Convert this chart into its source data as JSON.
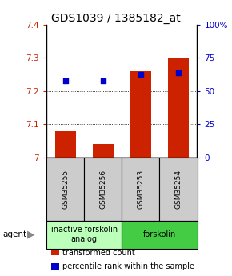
{
  "title": "GDS1039 / 1385182_at",
  "samples": [
    "GSM35255",
    "GSM35256",
    "GSM35253",
    "GSM35254"
  ],
  "red_values": [
    7.08,
    7.04,
    7.26,
    7.3
  ],
  "blue_values": [
    7.23,
    7.23,
    7.25,
    7.255
  ],
  "y_min": 7.0,
  "y_max": 7.4,
  "y_ticks": [
    7.0,
    7.1,
    7.2,
    7.3,
    7.4
  ],
  "y_right_ticks": [
    0,
    25,
    50,
    75,
    100
  ],
  "y_right_labels": [
    "0",
    "25",
    "50",
    "75",
    "100%"
  ],
  "groups": [
    {
      "label": "inactive forskolin\nanalog",
      "indices": [
        0,
        1
      ],
      "color": "#bbffbb"
    },
    {
      "label": "forskolin",
      "indices": [
        2,
        3
      ],
      "color": "#44cc44"
    }
  ],
  "bar_color": "#cc2200",
  "dot_color": "#0000cc",
  "bar_width": 0.55,
  "dot_size": 22,
  "sample_box_color": "#cccccc",
  "agent_label": "agent",
  "legend_items": [
    {
      "color": "#cc2200",
      "label": "transformed count"
    },
    {
      "color": "#0000cc",
      "label": "percentile rank within the sample"
    }
  ],
  "title_fontsize": 10,
  "tick_fontsize": 7.5,
  "sample_fontsize": 6.5,
  "group_fontsize": 7,
  "legend_fontsize": 7
}
